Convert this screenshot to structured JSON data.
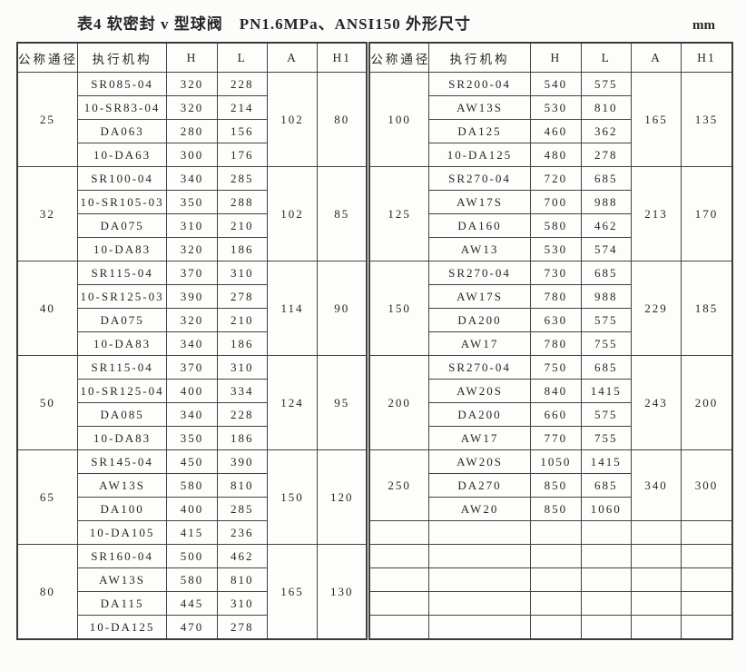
{
  "page": {
    "title": "表4  软密封 v 型球阀　PN1.6MPa、ANSI150  外形尺寸",
    "unit": "mm"
  },
  "table": {
    "headers": [
      "公称通径",
      "执行机构",
      "H",
      "L",
      "A",
      "H1"
    ],
    "left_groups": [
      {
        "dn": "25",
        "A": "102",
        "H1": "80",
        "rows": [
          [
            "SR085-04",
            "320",
            "228"
          ],
          [
            "10-SR83-04",
            "320",
            "214"
          ],
          [
            "DA063",
            "280",
            "156"
          ],
          [
            "10-DA63",
            "300",
            "176"
          ]
        ]
      },
      {
        "dn": "32",
        "A": "102",
        "H1": "85",
        "rows": [
          [
            "SR100-04",
            "340",
            "285"
          ],
          [
            "10-SR105-03",
            "350",
            "288"
          ],
          [
            "DA075",
            "310",
            "210"
          ],
          [
            "10-DA83",
            "320",
            "186"
          ]
        ]
      },
      {
        "dn": "40",
        "A": "114",
        "H1": "90",
        "rows": [
          [
            "SR115-04",
            "370",
            "310"
          ],
          [
            "10-SR125-03",
            "390",
            "278"
          ],
          [
            "DA075",
            "320",
            "210"
          ],
          [
            "10-DA83",
            "340",
            "186"
          ]
        ]
      },
      {
        "dn": "50",
        "A": "124",
        "H1": "95",
        "rows": [
          [
            "SR115-04",
            "370",
            "310"
          ],
          [
            "10-SR125-04",
            "400",
            "334"
          ],
          [
            "DA085",
            "340",
            "228"
          ],
          [
            "10-DA83",
            "350",
            "186"
          ]
        ]
      },
      {
        "dn": "65",
        "A": "150",
        "H1": "120",
        "rows": [
          [
            "SR145-04",
            "450",
            "390"
          ],
          [
            "AW13S",
            "580",
            "810"
          ],
          [
            "DA100",
            "400",
            "285"
          ],
          [
            "10-DA105",
            "415",
            "236"
          ]
        ]
      },
      {
        "dn": "80",
        "A": "165",
        "H1": "130",
        "rows": [
          [
            "SR160-04",
            "500",
            "462"
          ],
          [
            "AW13S",
            "580",
            "810"
          ],
          [
            "DA115",
            "445",
            "310"
          ],
          [
            "10-DA125",
            "470",
            "278"
          ]
        ]
      }
    ],
    "right_groups": [
      {
        "dn": "100",
        "A": "165",
        "H1": "135",
        "rows": [
          [
            "SR200-04",
            "540",
            "575"
          ],
          [
            "AW13S",
            "530",
            "810"
          ],
          [
            "DA125",
            "460",
            "362"
          ],
          [
            "10-DA125",
            "480",
            "278"
          ]
        ]
      },
      {
        "dn": "125",
        "A": "213",
        "H1": "170",
        "rows": [
          [
            "SR270-04",
            "720",
            "685"
          ],
          [
            "AW17S",
            "700",
            "988"
          ],
          [
            "DA160",
            "580",
            "462"
          ],
          [
            "AW13",
            "530",
            "574"
          ]
        ]
      },
      {
        "dn": "150",
        "A": "229",
        "H1": "185",
        "rows": [
          [
            "SR270-04",
            "730",
            "685"
          ],
          [
            "AW17S",
            "780",
            "988"
          ],
          [
            "DA200",
            "630",
            "575"
          ],
          [
            "AW17",
            "780",
            "755"
          ]
        ]
      },
      {
        "dn": "200",
        "A": "243",
        "H1": "200",
        "rows": [
          [
            "SR270-04",
            "750",
            "685"
          ],
          [
            "AW20S",
            "840",
            "1415"
          ],
          [
            "DA200",
            "660",
            "575"
          ],
          [
            "AW17",
            "770",
            "755"
          ]
        ]
      },
      {
        "dn": "250",
        "A": "340",
        "H1": "300",
        "rows": [
          [
            "AW20S",
            "1050",
            "1415"
          ],
          [
            "DA270",
            "850",
            "685"
          ],
          [
            "AW20",
            "850",
            "1060"
          ]
        ]
      }
    ],
    "right_empty_rows": 5
  }
}
